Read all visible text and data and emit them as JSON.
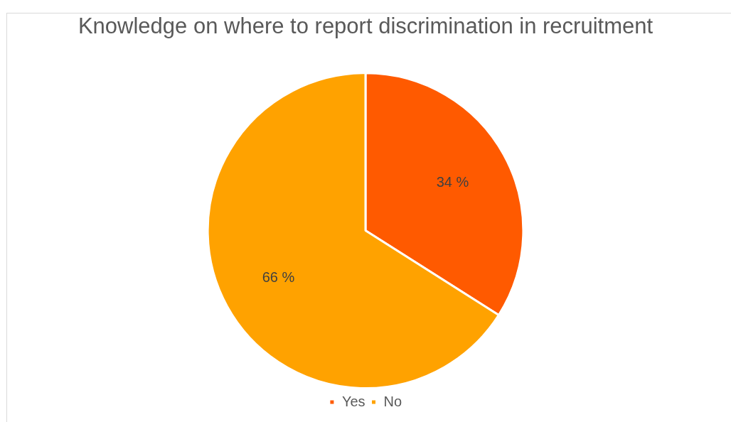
{
  "chart_data": {
    "type": "pie",
    "title": "Knowledge on where to report discrimination in recruitment",
    "categories": [
      "Yes",
      "No"
    ],
    "values": [
      34,
      66
    ],
    "colors": [
      "#ff5a00",
      "#ffa200"
    ],
    "value_labels": [
      "34 %",
      "66 %"
    ],
    "legend": "bottom"
  }
}
